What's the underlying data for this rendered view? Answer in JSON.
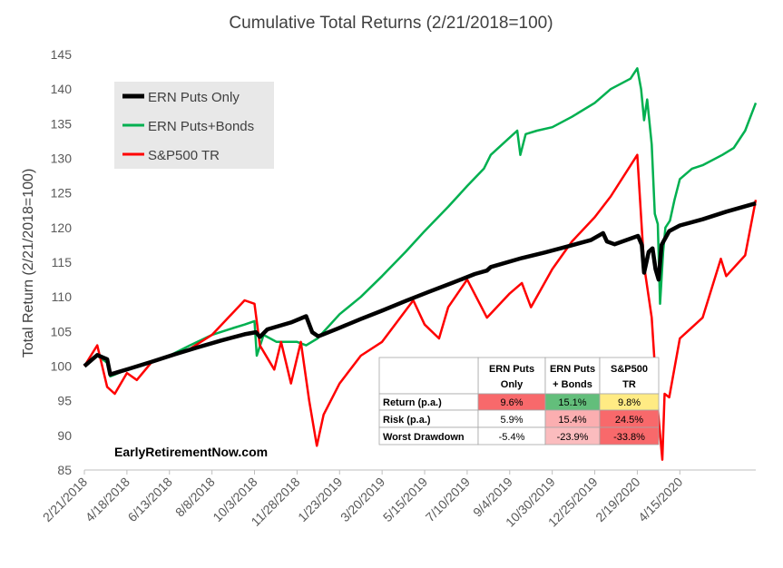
{
  "chart_data": {
    "type": "line",
    "title": "Cumulative Total Returns (2/21/2018=100)",
    "xlabel": "",
    "ylabel": "Total Return (2/21/2018=100)",
    "ylim": [
      85,
      145
    ],
    "yticks": [
      85,
      90,
      95,
      100,
      105,
      110,
      115,
      120,
      125,
      130,
      135,
      140,
      145
    ],
    "xlim": [
      "2/21/2018",
      "7/24/2020"
    ],
    "xticks": [
      "2/21/2018",
      "4/18/2018",
      "6/13/2018",
      "8/8/2018",
      "10/3/2018",
      "11/28/2018",
      "1/23/2019",
      "3/20/2019",
      "5/15/2019",
      "7/10/2019",
      "9/4/2019",
      "10/30/2019",
      "12/25/2019",
      "2/19/2020",
      "4/15/2020"
    ],
    "grid": false,
    "legend_position": "top-left",
    "series": [
      {
        "name": "ERN Puts Only",
        "color": "#000000",
        "points": [
          [
            "2/21/2018",
            100
          ],
          [
            "3/10/2018",
            101.6
          ],
          [
            "3/23/2018",
            101.0
          ],
          [
            "3/27/2018",
            98.8
          ],
          [
            "4/20/2018",
            99.6
          ],
          [
            "5/20/2018",
            100.6
          ],
          [
            "6/20/2018",
            101.7
          ],
          [
            "7/20/2018",
            102.7
          ],
          [
            "8/20/2018",
            103.7
          ],
          [
            "9/20/2018",
            104.6
          ],
          [
            "10/5/2018",
            104.9
          ],
          [
            "10/10/2018",
            104.2
          ],
          [
            "10/20/2018",
            105.3
          ],
          [
            "11/20/2018",
            106.3
          ],
          [
            "12/10/2018",
            107.2
          ],
          [
            "12/18/2018",
            104.9
          ],
          [
            "12/26/2018",
            104.3
          ],
          [
            "1/20/2019",
            105.4
          ],
          [
            "2/20/2019",
            106.8
          ],
          [
            "3/20/2019",
            108.0
          ],
          [
            "4/20/2019",
            109.4
          ],
          [
            "5/20/2019",
            110.7
          ],
          [
            "6/20/2019",
            112.0
          ],
          [
            "7/20/2019",
            113.3
          ],
          [
            "8/5/2019",
            113.8
          ],
          [
            "8/10/2019",
            114.3
          ],
          [
            "9/20/2019",
            115.6
          ],
          [
            "10/20/2019",
            116.4
          ],
          [
            "11/20/2019",
            117.3
          ],
          [
            "12/20/2019",
            118.2
          ],
          [
            "1/5/2020",
            119.2
          ],
          [
            "1/10/2020",
            118.0
          ],
          [
            "1/20/2020",
            117.6
          ],
          [
            "2/20/2020",
            118.8
          ],
          [
            "2/25/2020",
            117.5
          ],
          [
            "2/28/2020",
            113.5
          ],
          [
            "3/5/2020",
            116.5
          ],
          [
            "3/10/2020",
            117.0
          ],
          [
            "3/14/2020",
            114.0
          ],
          [
            "3/18/2020",
            112.5
          ],
          [
            "3/22/2020",
            117.5
          ],
          [
            "4/1/2020",
            119.5
          ],
          [
            "4/15/2020",
            120.3
          ],
          [
            "5/15/2020",
            121.2
          ],
          [
            "6/15/2020",
            122.3
          ],
          [
            "7/24/2020",
            123.5
          ]
        ]
      },
      {
        "name": "ERN Puts+Bonds",
        "color": "#00b050",
        "points": [
          [
            "2/21/2018",
            100
          ],
          [
            "3/10/2018",
            101.5
          ],
          [
            "3/23/2018",
            100.5
          ],
          [
            "3/27/2018",
            98.5
          ],
          [
            "4/18/2018",
            99.5
          ],
          [
            "5/20/2018",
            100.5
          ],
          [
            "6/13/2018",
            101.5
          ],
          [
            "7/10/2018",
            103.0
          ],
          [
            "8/8/2018",
            104.5
          ],
          [
            "9/5/2018",
            105.5
          ],
          [
            "9/20/2018",
            106.0
          ],
          [
            "10/3/2018",
            106.5
          ],
          [
            "10/6/2018",
            101.5
          ],
          [
            "10/15/2018",
            104.5
          ],
          [
            "11/1/2018",
            103.5
          ],
          [
            "11/28/2018",
            103.5
          ],
          [
            "12/10/2018",
            103.0
          ],
          [
            "12/25/2018",
            104.0
          ],
          [
            "1/23/2019",
            107.5
          ],
          [
            "2/20/2019",
            110.0
          ],
          [
            "3/20/2019",
            113.0
          ],
          [
            "4/20/2019",
            116.5
          ],
          [
            "5/15/2019",
            119.5
          ],
          [
            "6/15/2019",
            123.0
          ],
          [
            "7/10/2019",
            126.0
          ],
          [
            "8/1/2019",
            128.5
          ],
          [
            "8/10/2019",
            130.5
          ],
          [
            "9/4/2019",
            133.0
          ],
          [
            "9/14/2019",
            134.0
          ],
          [
            "9/18/2019",
            130.5
          ],
          [
            "9/25/2019",
            133.5
          ],
          [
            "10/10/2019",
            134.0
          ],
          [
            "10/30/2019",
            134.5
          ],
          [
            "11/25/2019",
            136.0
          ],
          [
            "12/25/2019",
            138.0
          ],
          [
            "1/15/2020",
            140.0
          ],
          [
            "2/10/2020",
            141.5
          ],
          [
            "2/19/2020",
            143.0
          ],
          [
            "2/24/2020",
            140.0
          ],
          [
            "2/28/2020",
            135.5
          ],
          [
            "3/3/2020",
            138.5
          ],
          [
            "3/9/2020",
            132.0
          ],
          [
            "3/13/2020",
            122.0
          ],
          [
            "3/17/2020",
            120.5
          ],
          [
            "3/20/2020",
            109.0
          ],
          [
            "3/24/2020",
            116.5
          ],
          [
            "3/27/2020",
            120.0
          ],
          [
            "4/2/2020",
            121.0
          ],
          [
            "4/8/2020",
            124.0
          ],
          [
            "4/15/2020",
            127.0
          ],
          [
            "5/1/2020",
            128.5
          ],
          [
            "5/15/2020",
            129.0
          ],
          [
            "6/10/2020",
            130.5
          ],
          [
            "6/25/2020",
            131.5
          ],
          [
            "7/10/2020",
            134.0
          ],
          [
            "7/24/2020",
            138.0
          ]
        ]
      },
      {
        "name": "S&P500 TR",
        "color": "#ff0000",
        "points": [
          [
            "2/21/2018",
            100
          ],
          [
            "3/10/2018",
            103.0
          ],
          [
            "3/23/2018",
            97.0
          ],
          [
            "4/2/2018",
            96.0
          ],
          [
            "4/18/2018",
            99.0
          ],
          [
            "5/1/2018",
            98.0
          ],
          [
            "5/20/2018",
            100.5
          ],
          [
            "6/13/2018",
            101.5
          ],
          [
            "7/10/2018",
            102.5
          ],
          [
            "8/8/2018",
            104.5
          ],
          [
            "9/20/2018",
            109.5
          ],
          [
            "10/3/2018",
            109.0
          ],
          [
            "10/10/2018",
            103.0
          ],
          [
            "10/29/2018",
            99.5
          ],
          [
            "11/7/2018",
            103.5
          ],
          [
            "11/20/2018",
            97.5
          ],
          [
            "12/3/2018",
            103.5
          ],
          [
            "12/14/2018",
            95.0
          ],
          [
            "12/24/2018",
            88.5
          ],
          [
            "1/2/2019",
            93.0
          ],
          [
            "1/23/2019",
            97.5
          ],
          [
            "2/20/2019",
            101.5
          ],
          [
            "3/20/2019",
            103.5
          ],
          [
            "4/30/2019",
            109.5
          ],
          [
            "5/15/2019",
            106.0
          ],
          [
            "6/3/2019",
            104.0
          ],
          [
            "6/15/2019",
            108.5
          ],
          [
            "7/10/2019",
            112.5
          ],
          [
            "8/5/2019",
            107.0
          ],
          [
            "9/4/2019",
            110.5
          ],
          [
            "9/20/2019",
            112.0
          ],
          [
            "10/2/2019",
            108.5
          ],
          [
            "10/30/2019",
            114.0
          ],
          [
            "11/25/2019",
            118.0
          ],
          [
            "12/25/2019",
            121.5
          ],
          [
            "1/15/2020",
            124.5
          ],
          [
            "2/19/2020",
            130.5
          ],
          [
            "2/28/2020",
            114.5
          ],
          [
            "3/9/2020",
            107.0
          ],
          [
            "3/16/2020",
            95.0
          ],
          [
            "3/23/2020",
            86.5
          ],
          [
            "3/26/2020",
            96.0
          ],
          [
            "4/1/2020",
            95.5
          ],
          [
            "4/15/2020",
            104.0
          ],
          [
            "5/15/2020",
            107.0
          ],
          [
            "6/8/2020",
            115.5
          ],
          [
            "6/15/2020",
            113.0
          ],
          [
            "7/10/2020",
            116.0
          ],
          [
            "7/24/2020",
            124.0
          ]
        ]
      }
    ]
  },
  "table": {
    "headers": [
      [
        "ERN Puts",
        "Only"
      ],
      [
        "ERN Puts",
        "+ Bonds"
      ],
      [
        "S&P500",
        "TR"
      ]
    ],
    "rows": [
      {
        "label": "Return (p.a.)",
        "values": [
          "9.6%",
          "15.1%",
          "9.8%"
        ],
        "colors": [
          "#f8696b",
          "#63be7b",
          "#ffeb84"
        ]
      },
      {
        "label": "Risk (p.a.)",
        "values": [
          "5.9%",
          "15.4%",
          "24.5%"
        ],
        "colors": [
          "#ffffff",
          "#fbaeb0",
          "#f8696b"
        ]
      },
      {
        "label": "Worst Drawdown",
        "values": [
          "-5.4%",
          "-23.9%",
          "-33.8%"
        ],
        "colors": [
          "#ffffff",
          "#fbbcbe",
          "#f8696b"
        ]
      }
    ]
  },
  "watermark": "EarlyRetirementNow.com"
}
